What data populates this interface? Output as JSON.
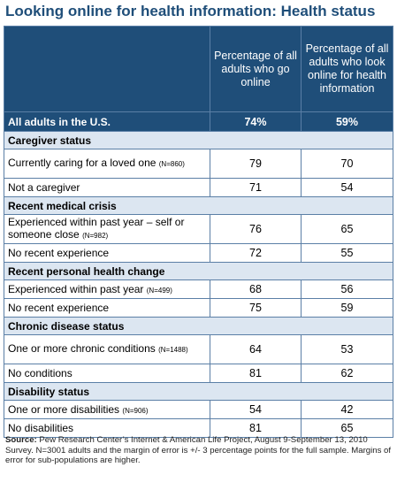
{
  "title": "Looking online for health information: Health status",
  "header": {
    "col2": "Percentage of all adults who go online",
    "col3": "Percentage of all adults who look online for health information"
  },
  "all_row": {
    "label": "All adults in the U.S.",
    "v1": "74%",
    "v2": "59%"
  },
  "sections": [
    {
      "title": "Caregiver status",
      "rows": [
        {
          "label": "Currently caring for a loved one",
          "n": "(N=860)",
          "v1": "79",
          "v2": "70"
        },
        {
          "label": "Not a caregiver",
          "n": "",
          "v1": "71",
          "v2": "54"
        }
      ]
    },
    {
      "title": "Recent medical crisis",
      "rows": [
        {
          "label": "Experienced within past year – self or someone close",
          "n": "(N=982)",
          "v1": "76",
          "v2": "65"
        },
        {
          "label": "No recent experience",
          "n": "",
          "v1": "72",
          "v2": "55"
        }
      ]
    },
    {
      "title": "Recent personal health change",
      "rows": [
        {
          "label": "Experienced within past year",
          "n": "(N=499)",
          "v1": "68",
          "v2": "56"
        },
        {
          "label": "No recent experience",
          "n": "",
          "v1": "75",
          "v2": "59"
        }
      ]
    },
    {
      "title": "Chronic disease status",
      "rows": [
        {
          "label": "One or more chronic conditions",
          "n": "(N=1488)",
          "v1": "64",
          "v2": "53"
        },
        {
          "label": "No conditions",
          "n": "",
          "v1": "81",
          "v2": "62"
        }
      ]
    },
    {
      "title": "Disability status",
      "rows": [
        {
          "label": "One or more disabilities",
          "n": "(N=906)",
          "v1": "54",
          "v2": "42"
        },
        {
          "label": "No disabilities",
          "n": "",
          "v1": "81",
          "v2": "65"
        }
      ]
    }
  ],
  "source": {
    "label": "Source:",
    "text": "Pew Research Center’s Internet & American Life Project, August 9-September 13, 2010 Survey. N=3001 adults and the margin of error is +/- 3 percentage points for the full sample. Margins of error for sub-populations are higher."
  }
}
